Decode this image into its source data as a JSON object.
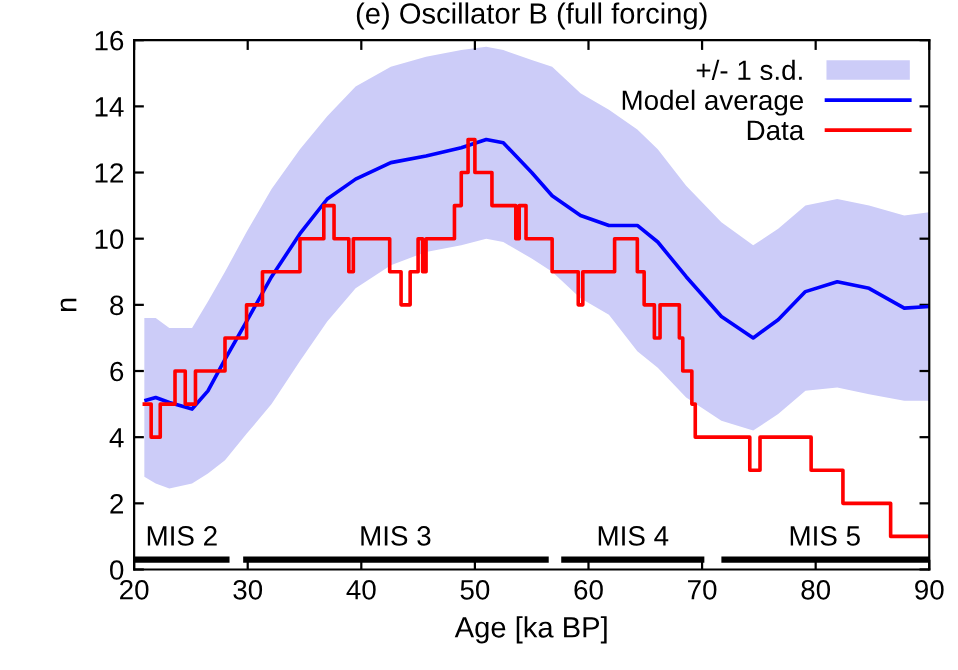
{
  "chart_data": {
    "type": "line",
    "title": "(e) Oscillator B (full forcing)",
    "xlabel": "Age [ka BP]",
    "ylabel": "n",
    "xlim": [
      20,
      90
    ],
    "xticks": [
      20,
      30,
      40,
      50,
      60,
      70,
      80,
      90
    ],
    "ylim": [
      0,
      16
    ],
    "yticks": [
      0,
      2,
      4,
      6,
      8,
      10,
      12,
      14,
      16
    ],
    "grid": false,
    "legend": "top right",
    "series": [
      {
        "name": "+/- 1 s.d.",
        "type": "area",
        "color": "#ccccf8"
      },
      {
        "name": "Model average",
        "type": "line",
        "color": "#0000ff",
        "x": [
          20.9,
          21.9,
          23.1,
          25.1,
          26.5,
          28.0,
          29.9,
          32.1,
          34.6,
          37.0,
          39.5,
          42.6,
          45.7,
          48.8,
          51.0,
          52.5,
          55.0,
          56.8,
          59.3,
          61.8,
          64.3,
          66.1,
          68.6,
          71.7,
          74.5,
          76.7,
          79.1,
          81.9,
          84.7,
          87.8,
          90
        ],
        "values": [
          5.1,
          5.2,
          5.05,
          4.85,
          5.4,
          6.35,
          7.5,
          8.85,
          10.15,
          11.2,
          11.8,
          12.3,
          12.5,
          12.75,
          13.0,
          12.9,
          12.0,
          11.3,
          10.7,
          10.4,
          10.4,
          9.9,
          8.85,
          7.65,
          7.0,
          7.55,
          8.4,
          8.7,
          8.5,
          7.9,
          7.95
        ],
        "lower": [
          2.8,
          2.6,
          2.45,
          2.6,
          2.9,
          3.3,
          4.1,
          5.0,
          6.3,
          7.5,
          8.5,
          9.2,
          9.6,
          9.8,
          10.0,
          9.9,
          9.4,
          9.0,
          8.2,
          7.7,
          6.6,
          6.1,
          5.2,
          4.5,
          4.2,
          4.7,
          5.4,
          5.5,
          5.3,
          5.1,
          5.1
        ],
        "upper": [
          7.6,
          7.6,
          7.3,
          7.3,
          8.1,
          9.0,
          10.2,
          11.5,
          12.7,
          13.7,
          14.6,
          15.2,
          15.5,
          15.7,
          15.8,
          15.7,
          15.4,
          15.2,
          14.4,
          13.9,
          13.3,
          12.7,
          11.6,
          10.5,
          9.8,
          10.3,
          11.0,
          11.2,
          11.0,
          10.7,
          10.8
        ]
      },
      {
        "name": "Data",
        "type": "step",
        "color": "#ff0000",
        "x": [
          20.9,
          21.5,
          22.3,
          23.6,
          24.5,
          25.4,
          28.0,
          29.9,
          31.3,
          34.6,
          36.7,
          37.6,
          38.9,
          39.3,
          42.5,
          43.5,
          44.3,
          45.0,
          45.4,
          45.7,
          48.2,
          48.8,
          49.4,
          50.0,
          51.5,
          53.6,
          53.9,
          54.5,
          56.8,
          59.1,
          59.5,
          62.3,
          64.3,
          64.9,
          65.8,
          66.3,
          68.0,
          68.3,
          69.1,
          69.4,
          74.2,
          75.1,
          79.6,
          82.4,
          86.6,
          90
        ],
        "values": [
          5,
          4,
          5,
          6,
          5,
          6,
          7,
          8,
          9,
          10,
          11,
          10,
          9,
          10,
          9,
          8,
          9,
          10,
          9,
          10,
          11,
          12,
          13,
          12,
          11,
          10,
          11,
          10,
          9,
          8,
          9,
          10,
          9,
          8,
          7,
          8,
          7,
          6,
          5,
          4,
          3,
          4,
          3,
          2,
          1,
          1
        ]
      },
      {
        "color": "#000000",
        "x": [
          20,
          28.4
        ],
        "values": [
          0.3,
          0.3
        ]
      },
      {
        "color": "#000000",
        "x": [
          29.6,
          56.5
        ],
        "values": [
          0.3,
          0.3
        ]
      },
      {
        "color": "#000000",
        "x": [
          57.6,
          70.2
        ],
        "values": [
          0.3,
          0.3
        ]
      },
      {
        "color": "#000000",
        "x": [
          71.7,
          90
        ],
        "values": [
          0.3,
          0.3
        ]
      }
    ],
    "annotations": [
      {
        "text": "MIS 2",
        "x": 24.2,
        "y": 0.3
      },
      {
        "text": "MIS 3",
        "x": 43.0,
        "y": 0.3
      },
      {
        "text": "MIS 4",
        "x": 63.9,
        "y": 0.3
      },
      {
        "text": "MIS 5",
        "x": 80.8,
        "y": 0.3
      }
    ]
  }
}
